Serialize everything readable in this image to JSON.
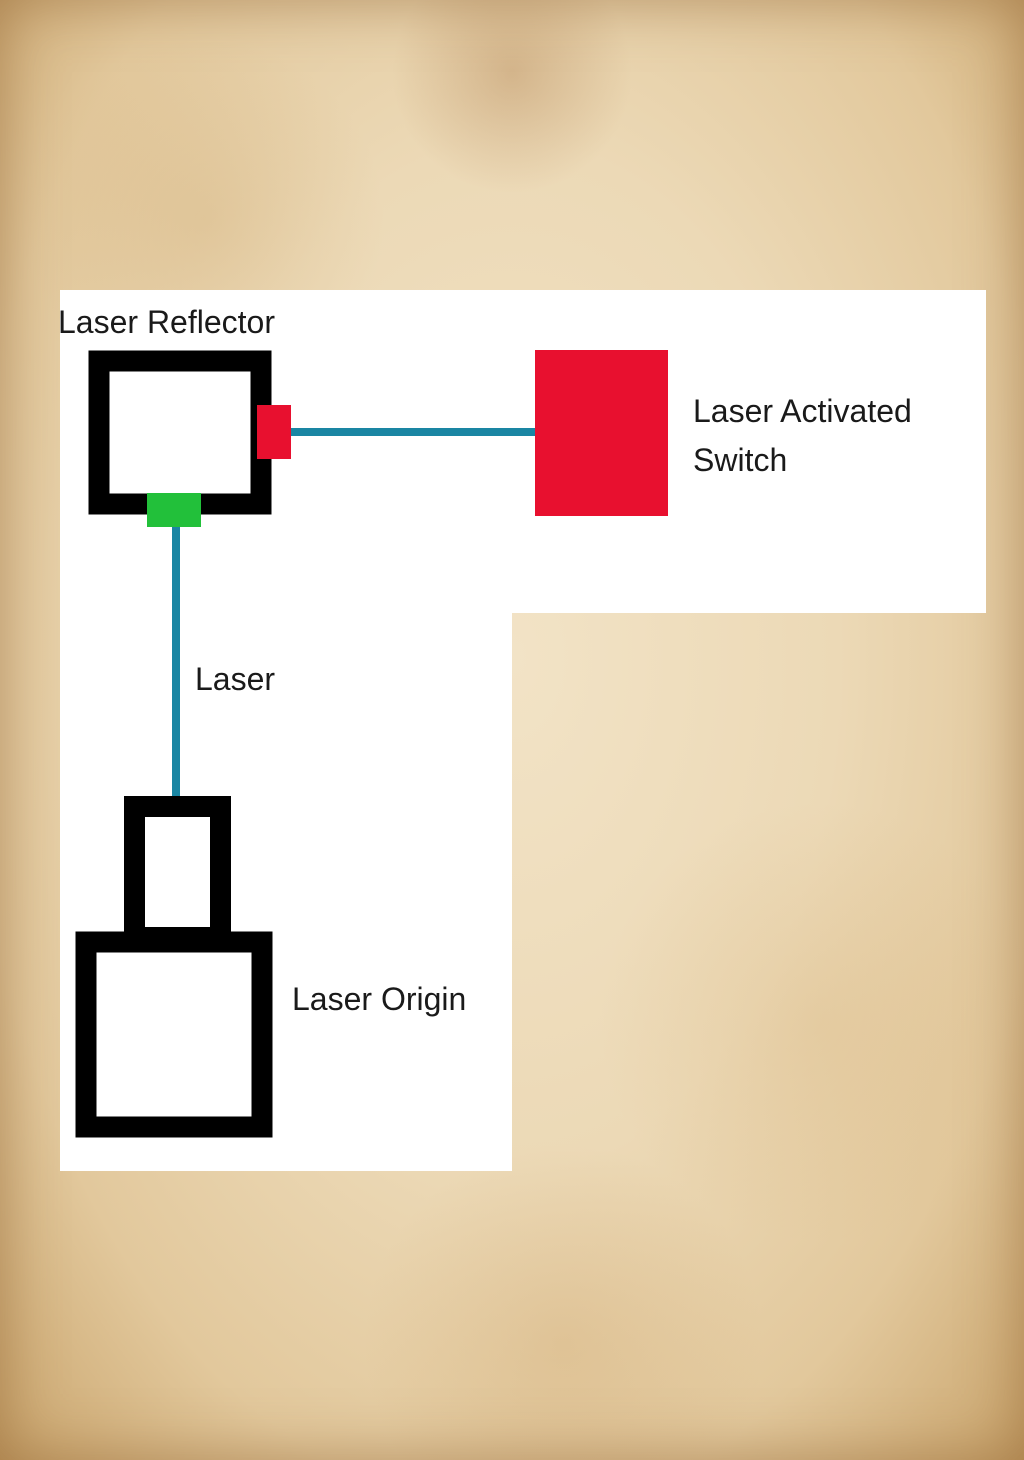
{
  "labels": {
    "reflector": "Laser Reflector",
    "switch_line1": "Laser Activated",
    "switch_line2": "Switch",
    "laser": "Laser",
    "origin": "Laser Origin"
  },
  "colors": {
    "paper": "#ecd9b6",
    "panel": "#ffffff",
    "outline": "#000000",
    "laser_beam": "#1a86a3",
    "switch": "#e8102f",
    "output_port": "#e8102f",
    "input_port": "#22c03a"
  }
}
